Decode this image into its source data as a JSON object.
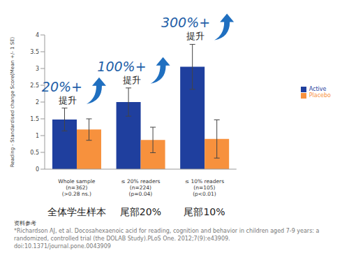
{
  "chart_data": {
    "type": "bar",
    "y_label": "Reading - Standardised change Score(Mean +/- 1 SE)",
    "categories": [
      [
        "Whole sample",
        "(n=362)",
        "(>0.28 ns.)"
      ],
      [
        "≤ 20% readers",
        "(n=224)",
        "(p=0.04)"
      ],
      [
        "≤ 10% readers",
        "(n=105)",
        "(p<0.01)"
      ]
    ],
    "category_labels_zh": [
      "全体学生样本",
      "尾部20%",
      "尾部10%"
    ],
    "ylim": [
      0,
      4
    ],
    "yticks": [
      0,
      0.5,
      1,
      1.5,
      2,
      2.5,
      3,
      3.5,
      4
    ],
    "grid": false,
    "legend": "right",
    "series": [
      {
        "name": "Active",
        "color": "#1f3f9e",
        "values": [
          1.48,
          2.0,
          3.05
        ],
        "errors": [
          0.34,
          0.42,
          0.67
        ]
      },
      {
        "name": "Placebo",
        "color": "#f7913d",
        "values": [
          1.18,
          0.87,
          0.9
        ],
        "errors": [
          0.32,
          0.38,
          0.57
        ]
      }
    ],
    "annotations": [
      {
        "text": "20%+",
        "subtext": "提升"
      },
      {
        "text": "100%+",
        "subtext": "提升"
      },
      {
        "text": "300%+",
        "subtext": "提升"
      }
    ]
  },
  "reference_heading": "资料参考",
  "reference": "*Richardson AJ, et al. Docosahexaenoic acid for reading, cognition and behavior in children aged 7-9 years: a randomized, controlled trial (the DOLAB Study).PLoS One. 2012;7(9):e43909. doi:10.1371/journal.pone.0043909"
}
